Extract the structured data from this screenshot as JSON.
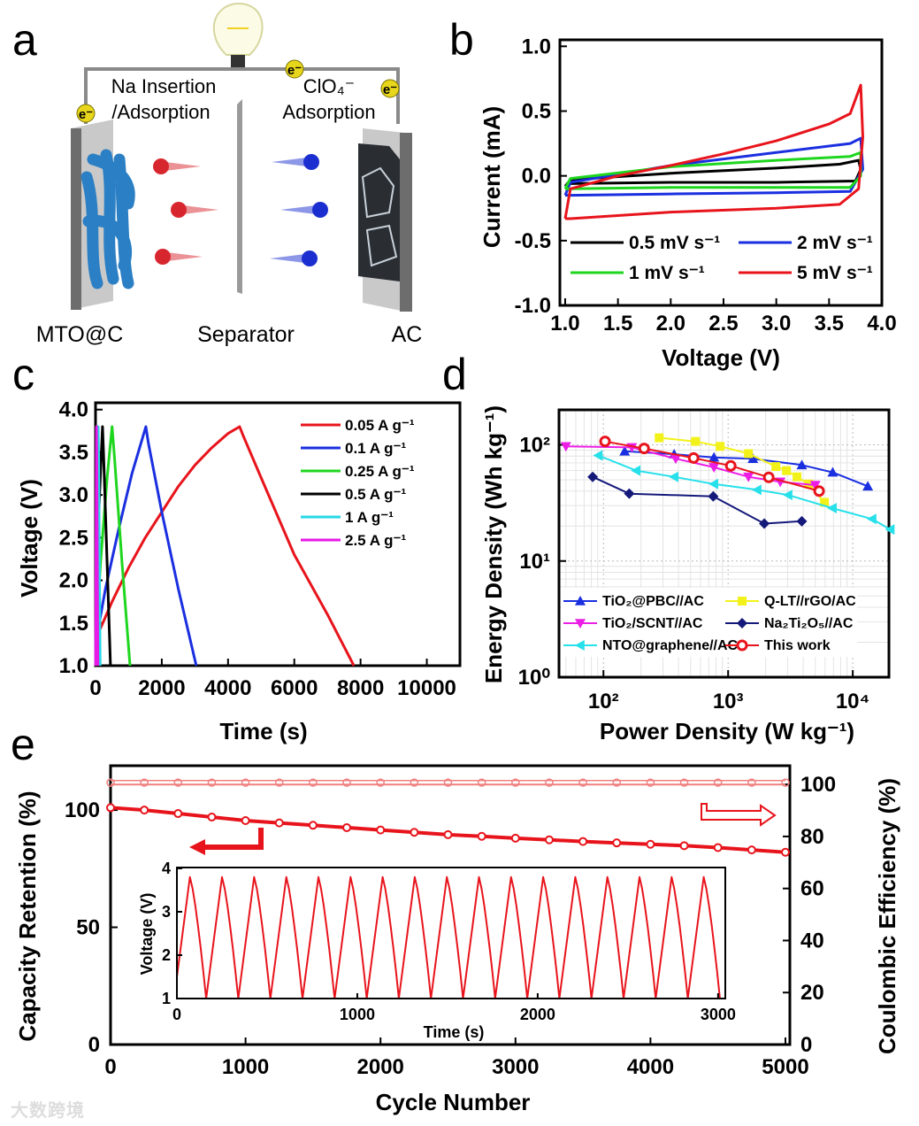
{
  "panel_letters": {
    "a": "a",
    "b": "b",
    "c": "c",
    "d": "d",
    "e": "e"
  },
  "panel_a": {
    "na_label_1": "Na Insertion",
    "na_label_2": "/Adsorption",
    "clo4_label": "ClO₄⁻",
    "clo4_label_2": "Adsorption",
    "electron": "e⁻",
    "anode": "MTO@C",
    "separator": "Separator",
    "cathode": "AC",
    "colors": {
      "anode_material": "#2b7fc4",
      "na_ion": "#d8262e",
      "anion": "#1b2fd0",
      "wire": "#8a8a8a",
      "electron": "#e8d61c"
    }
  },
  "chart_data": [
    {
      "id": "b",
      "type": "line",
      "xlabel": "Voltage (V)",
      "ylabel": "Current (mA)",
      "xlim": [
        0.95,
        4.0
      ],
      "ylim": [
        -1.0,
        1.05
      ],
      "xticks": [
        1.0,
        1.5,
        2.0,
        2.5,
        3.0,
        3.5,
        4.0
      ],
      "xtick_labels": [
        "1.0",
        "1.5",
        "2.0",
        "2.5",
        "3.0",
        "3.5",
        "4.0"
      ],
      "yticks": [
        -1.0,
        -0.5,
        0.0,
        0.5,
        1.0
      ],
      "ytick_labels": [
        "-1.0",
        "-0.5",
        "0.0",
        "0.5",
        "1.0"
      ],
      "legend_placement": "bottom",
      "series": [
        {
          "name": "0.5 mV s⁻¹",
          "color": "#000000",
          "points": [
            [
              1.0,
              -0.08
            ],
            [
              1.05,
              -0.03
            ],
            [
              2,
              0.02
            ],
            [
              3,
              0.06
            ],
            [
              3.6,
              0.09
            ],
            [
              3.78,
              0.12
            ],
            [
              3.8,
              0.05
            ],
            [
              3.75,
              -0.04
            ],
            [
              3,
              -0.05
            ],
            [
              2,
              -0.05
            ],
            [
              1.05,
              -0.06
            ],
            [
              1.0,
              -0.08
            ]
          ]
        },
        {
          "name": "2 mV s⁻¹",
          "color": "#1a2fe0",
          "points": [
            [
              1.0,
              -0.15
            ],
            [
              1.05,
              -0.05
            ],
            [
              2,
              0.08
            ],
            [
              3,
              0.18
            ],
            [
              3.7,
              0.25
            ],
            [
              3.8,
              0.29
            ],
            [
              3.82,
              0.05
            ],
            [
              3.7,
              -0.12
            ],
            [
              3,
              -0.13
            ],
            [
              2,
              -0.14
            ],
            [
              1.05,
              -0.15
            ],
            [
              1.0,
              -0.15
            ]
          ]
        },
        {
          "name": "1 mV s⁻¹",
          "color": "#1fd61f",
          "points": [
            [
              1.0,
              -0.1
            ],
            [
              1.05,
              -0.02
            ],
            [
              2,
              0.07
            ],
            [
              3,
              0.12
            ],
            [
              3.7,
              0.15
            ],
            [
              3.8,
              0.18
            ],
            [
              3.8,
              0.0
            ],
            [
              3.7,
              -0.09
            ],
            [
              3,
              -0.09
            ],
            [
              2,
              -0.09
            ],
            [
              1.05,
              -0.1
            ],
            [
              1.0,
              -0.1
            ]
          ]
        },
        {
          "name": "5 mV s⁻¹",
          "color": "#e8141c",
          "points": [
            [
              1.0,
              -0.33
            ],
            [
              1.05,
              -0.1
            ],
            [
              1.5,
              0.0
            ],
            [
              2,
              0.08
            ],
            [
              2.5,
              0.17
            ],
            [
              3,
              0.27
            ],
            [
              3.5,
              0.4
            ],
            [
              3.7,
              0.48
            ],
            [
              3.8,
              0.7
            ],
            [
              3.82,
              0.3
            ],
            [
              3.78,
              -0.1
            ],
            [
              3.6,
              -0.22
            ],
            [
              3,
              -0.25
            ],
            [
              2,
              -0.28
            ],
            [
              1.05,
              -0.33
            ],
            [
              1.0,
              -0.33
            ]
          ]
        }
      ]
    },
    {
      "id": "c",
      "type": "line",
      "xlabel": "Time (s)",
      "ylabel": "Voltage (V)",
      "xlim": [
        0,
        11000
      ],
      "ylim": [
        1.0,
        4.08
      ],
      "xticks": [
        0,
        2000,
        4000,
        6000,
        8000,
        10000
      ],
      "xtick_labels": [
        "0",
        "2000",
        "4000",
        "6000",
        "8000",
        "10000"
      ],
      "yticks": [
        1.0,
        1.5,
        2.0,
        2.5,
        3.0,
        3.5,
        4.0
      ],
      "ytick_labels": [
        "1.0",
        "1.5",
        "2.0",
        "2.5",
        "3.0",
        "3.5",
        "4.0"
      ],
      "legend_placement": "top-right",
      "series": [
        {
          "name": "0.05 A g⁻¹",
          "color": "#e8141c",
          "points": [
            [
              0,
              1.0
            ],
            [
              50,
              1.35
            ],
            [
              500,
              1.75
            ],
            [
              1000,
              2.15
            ],
            [
              1500,
              2.5
            ],
            [
              2000,
              2.8
            ],
            [
              2500,
              3.1
            ],
            [
              3000,
              3.35
            ],
            [
              3500,
              3.55
            ],
            [
              4000,
              3.72
            ],
            [
              4350,
              3.8
            ],
            [
              4450,
              3.7
            ],
            [
              5000,
              3.2
            ],
            [
              6000,
              2.3
            ],
            [
              7000,
              1.6
            ],
            [
              7800,
              1.0
            ]
          ]
        },
        {
          "name": "0.1 A g⁻¹",
          "color": "#1a2fe0",
          "points": [
            [
              0,
              1.0
            ],
            [
              20,
              1.3
            ],
            [
              300,
              1.9
            ],
            [
              700,
              2.6
            ],
            [
              1100,
              3.25
            ],
            [
              1520,
              3.8
            ],
            [
              1600,
              3.6
            ],
            [
              2000,
              2.8
            ],
            [
              2500,
              1.9
            ],
            [
              3040,
              1.0
            ]
          ]
        },
        {
          "name": "0.25 A g⁻¹",
          "color": "#1fd61f",
          "points": [
            [
              0,
              1.0
            ],
            [
              10,
              1.3
            ],
            [
              150,
              2.2
            ],
            [
              350,
              3.2
            ],
            [
              500,
              3.8
            ],
            [
              560,
              3.5
            ],
            [
              800,
              2.2
            ],
            [
              1040,
              1.0
            ]
          ]
        },
        {
          "name": "0.5 A g⁻¹",
          "color": "#000000",
          "points": [
            [
              0,
              1.0
            ],
            [
              5,
              1.3
            ],
            [
              100,
              2.8
            ],
            [
              210,
              3.8
            ],
            [
              240,
              3.5
            ],
            [
              450,
              1.0
            ]
          ]
        },
        {
          "name": "1 A g⁻¹",
          "color": "#26d9e6",
          "points": [
            [
              0,
              1.0
            ],
            [
              40,
              2.6
            ],
            [
              80,
              3.8
            ],
            [
              95,
              3.4
            ],
            [
              140,
              1.0
            ]
          ]
        },
        {
          "name": "2.5 A g⁻¹",
          "color": "#e619e6",
          "points": [
            [
              0,
              1.0
            ],
            [
              15,
              2.5
            ],
            [
              30,
              3.8
            ],
            [
              40,
              3.3
            ],
            [
              70,
              1.0
            ]
          ]
        }
      ]
    },
    {
      "id": "d",
      "type": "scatter",
      "scale": "log-log",
      "xlabel": "Power Density (W kg⁻¹)",
      "ylabel": "Energy Density (Wh kg⁻¹)",
      "xlim": [
        44,
        19500
      ],
      "ylim": [
        1,
        200
      ],
      "xticks": [
        100,
        1000,
        10000
      ],
      "xtick_labels": [
        "10²",
        "10³",
        "10⁴"
      ],
      "yticks": [
        1,
        10,
        100
      ],
      "ytick_labels": [
        "10⁰",
        "10¹",
        "10²"
      ],
      "grid": true,
      "legend_placement": "bottom",
      "series": [
        {
          "name": "TiO₂@PBC//AC",
          "color": "#1a2fe0",
          "marker": "triangle-up",
          "x": [
            148,
            369,
            770,
            1580,
            3900,
            6900,
            13200
          ],
          "y": [
            88,
            83,
            78,
            76,
            67,
            58,
            44
          ]
        },
        {
          "name": "Q-LT//rGO/AC",
          "color": "#f2f21a",
          "marker": "square",
          "x": [
            280,
            547,
            863,
            1456,
            2415,
            2940,
            3570,
            4420,
            5930
          ],
          "y": [
            115,
            107,
            97,
            84,
            65,
            60,
            53,
            46,
            32
          ]
        },
        {
          "name": "TiO₂/SCNT//AC",
          "color": "#ec1ee6",
          "marker": "triangle-down",
          "x": [
            50,
            169,
            380,
            770,
            1456,
            2620,
            5000
          ],
          "y": [
            97,
            95,
            76,
            64,
            53,
            48,
            45
          ]
        },
        {
          "name": "Na₂Ti₂O₅//AC",
          "color": "#14197a",
          "marker": "diamond",
          "x": [
            82,
            161,
            760,
            1950,
            3900
          ],
          "y": [
            53,
            38,
            36,
            21,
            22
          ]
        },
        {
          "name": "NTO@graphene//AC",
          "color": "#26e0ea",
          "marker": "triangle-left",
          "x": [
            91,
            183,
            369,
            770,
            1710,
            3030,
            6870,
            14300,
            20000
          ],
          "y": [
            81,
            60,
            53,
            46,
            41,
            37,
            28.5,
            23,
            18.7
          ]
        },
        {
          "name": "This work",
          "color": "#e8141c",
          "marker": "circle",
          "x": [
            103,
            212,
            529,
            1050,
            2120,
            5370
          ],
          "y": [
            107,
            93,
            77,
            66,
            52.5,
            40
          ]
        }
      ]
    },
    {
      "id": "e",
      "type": "line",
      "xlabel": "Cycle Number",
      "ylabel": "Capacity Retention (%)",
      "y2label": "Coulombic Efficiency (%)",
      "xlim": [
        0,
        5000
      ],
      "ylim": [
        0,
        118.9
      ],
      "y2lim": [
        0,
        107.2
      ],
      "xticks": [
        0,
        1000,
        2000,
        3000,
        4000,
        5000
      ],
      "xtick_labels": [
        "0",
        "1000",
        "2000",
        "3000",
        "4000",
        "5000"
      ],
      "yticks": [
        0,
        50,
        100
      ],
      "ytick_labels": [
        "0",
        "50",
        "100"
      ],
      "y2ticks": [
        0,
        20,
        40,
        60,
        80,
        100
      ],
      "y2tick_labels": [
        "0",
        "20",
        "40",
        "60",
        "80",
        "100"
      ],
      "cycles": [
        0,
        250,
        500,
        750,
        1000,
        1250,
        1500,
        1750,
        2000,
        2250,
        2500,
        2750,
        3000,
        3250,
        3500,
        3750,
        4000,
        4250,
        4500,
        4750,
        5000
      ],
      "series": [
        {
          "name": "Capacity Retention",
          "axis": "left",
          "color": "#e8141c",
          "values": [
            101,
            100,
            98.5,
            97,
            95.5,
            94.5,
            93.5,
            92.5,
            91.5,
            90.5,
            89.5,
            88.8,
            88,
            87.3,
            86.6,
            86,
            85.4,
            84.8,
            84,
            83,
            82
          ]
        },
        {
          "name": "Coulombic Efficiency",
          "axis": "right",
          "color": "#f08080",
          "values": [
            100,
            100,
            100,
            100,
            100,
            100,
            100,
            100,
            100,
            100,
            100,
            100,
            100,
            100,
            100,
            100,
            100,
            100,
            100,
            100,
            100
          ]
        }
      ],
      "inset": {
        "type": "line",
        "xlabel": "Time (s)",
        "ylabel": "Voltage (V)",
        "xlim": [
          0,
          3040
        ],
        "ylim": [
          1,
          4.02
        ],
        "xticks": [
          0,
          1000,
          2000,
          3000
        ],
        "xtick_labels": [
          "0",
          "1000",
          "2000",
          "3000"
        ],
        "yticks": [
          1,
          2,
          3,
          4
        ],
        "ytick_labels": [
          "1",
          "2",
          "3",
          "4"
        ],
        "color": "#e8141c",
        "n_cycles": 17,
        "start_voltage": 1.5,
        "v_min": 1.0,
        "v_max": 3.8,
        "charge_time_s": 88,
        "discharge_time_s": 90
      }
    }
  ],
  "watermark": "大数跨境"
}
